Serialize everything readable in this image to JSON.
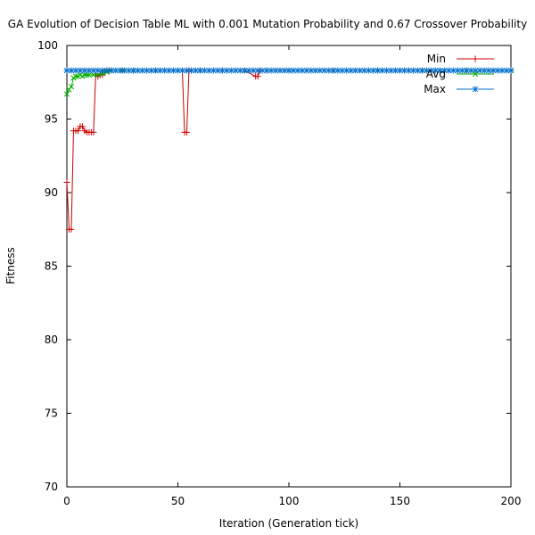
{
  "chart_data": {
    "type": "line",
    "title": "GA Evolution of Decision Table ML with 0.001 Mutation Probability and 0.67 Crossover Probability",
    "xlabel": "Iteration (Generation tick)",
    "ylabel": "Fitness",
    "xlim": [
      0,
      200
    ],
    "ylim": [
      70,
      100
    ],
    "xticks": [
      "0",
      "50",
      "100",
      "150",
      "200"
    ],
    "yticks": [
      "70",
      "75",
      "80",
      "85",
      "90",
      "95",
      "100"
    ],
    "grid": false,
    "legend_position": "top-right",
    "series": [
      {
        "name": "Min",
        "color": "#cc0000",
        "marker": "plus",
        "x": [
          0,
          1,
          2,
          3,
          4,
          5,
          6,
          7,
          8,
          9,
          10,
          11,
          12,
          13,
          14,
          15,
          16,
          17,
          18,
          19,
          20,
          25,
          30,
          40,
          50,
          52,
          53,
          54,
          55,
          56,
          60,
          70,
          80,
          85,
          86,
          87,
          90,
          100,
          120,
          140,
          160,
          180,
          200
        ],
        "y": [
          90.7,
          87.5,
          87.5,
          94.2,
          94.2,
          94.2,
          94.5,
          94.5,
          94.2,
          94.1,
          94.1,
          94.1,
          94.1,
          98.0,
          97.9,
          98.0,
          98.0,
          98.2,
          98.3,
          98.3,
          98.3,
          98.3,
          98.3,
          98.3,
          98.3,
          98.3,
          94.1,
          94.1,
          98.3,
          98.3,
          98.3,
          98.3,
          98.3,
          97.9,
          97.9,
          98.3,
          98.3,
          98.3,
          98.3,
          98.3,
          98.3,
          98.3,
          98.3
        ]
      },
      {
        "name": "Avg",
        "color": "#00b000",
        "marker": "cross",
        "x": [
          0,
          1,
          2,
          3,
          4,
          5,
          6,
          7,
          8,
          9,
          10,
          12,
          14,
          16,
          18,
          20,
          25,
          30,
          40,
          60,
          80,
          100,
          120,
          140,
          160,
          180,
          200
        ],
        "y": [
          96.7,
          97.0,
          97.2,
          97.8,
          97.9,
          97.9,
          98.0,
          97.9,
          98.0,
          98.0,
          98.0,
          98.0,
          98.0,
          98.1,
          98.2,
          98.3,
          98.3,
          98.3,
          98.3,
          98.3,
          98.3,
          98.3,
          98.3,
          98.3,
          98.3,
          98.3,
          98.3
        ]
      },
      {
        "name": "Max",
        "color": "#0070d0",
        "marker": "star",
        "x": [
          0,
          200
        ],
        "y": [
          98.3,
          98.3
        ],
        "marker_every": 2
      }
    ]
  }
}
